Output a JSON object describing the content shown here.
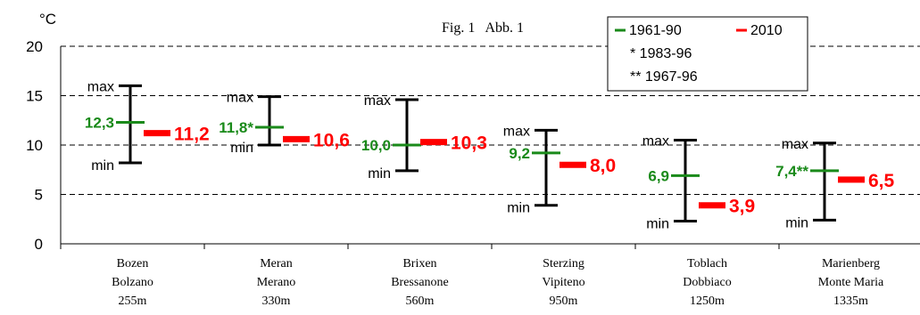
{
  "chart_data": {
    "type": "range",
    "figure_label": "Fig. 1   Abb. 1",
    "unit": "°C",
    "ylim": [
      0,
      20
    ],
    "yticks": [
      0,
      5,
      10,
      15,
      20
    ],
    "grid": "dashed-horizontal",
    "legend_position": "top-right",
    "legend": {
      "series": [
        "1961-90",
        "2010"
      ],
      "notes": [
        "* 1983-96",
        "** 1967-96"
      ]
    },
    "range_labels": {
      "max": "max",
      "min": "min"
    },
    "colors": {
      "mean_1961_90": "#1a8a1a",
      "mean_2010": "#ff0000",
      "range": "#000000",
      "grid": "#000000"
    },
    "stations": [
      {
        "name_de": "Bozen",
        "name_it": "Bolzano",
        "elevation": "255m",
        "max": 16.0,
        "min": 8.2,
        "mean_1961_90": 12.3,
        "mean_1961_90_label": "12,3",
        "mean_2010": 11.2,
        "mean_2010_label": "11,2"
      },
      {
        "name_de": "Meran",
        "name_it": "Merano",
        "elevation": "330m",
        "max": 14.9,
        "min": 10.0,
        "mean_1961_90": 11.8,
        "mean_1961_90_label": "11,8*",
        "mean_2010": 10.6,
        "mean_2010_label": "10,6"
      },
      {
        "name_de": "Brixen",
        "name_it": "Bressanone",
        "elevation": "560m",
        "max": 14.6,
        "min": 7.4,
        "mean_1961_90": 10.0,
        "mean_1961_90_label": "10,0",
        "mean_2010": 10.3,
        "mean_2010_label": "10,3"
      },
      {
        "name_de": "Sterzing",
        "name_it": "Vipiteno",
        "elevation": "950m",
        "max": 11.5,
        "min": 3.9,
        "mean_1961_90": 9.2,
        "mean_1961_90_label": "9,2",
        "mean_2010": 8.0,
        "mean_2010_label": "8,0"
      },
      {
        "name_de": "Toblach",
        "name_it": "Dobbiaco",
        "elevation": "1250m",
        "max": 10.5,
        "min": 2.3,
        "mean_1961_90": 6.9,
        "mean_1961_90_label": "6,9",
        "mean_2010": 3.9,
        "mean_2010_label": "3,9"
      },
      {
        "name_de": "Marienberg",
        "name_it": "Monte Maria",
        "elevation": "1335m",
        "max": 10.2,
        "min": 2.4,
        "mean_1961_90": 7.4,
        "mean_1961_90_label": "7,4**",
        "mean_2010": 6.5,
        "mean_2010_label": "6,5"
      }
    ]
  }
}
